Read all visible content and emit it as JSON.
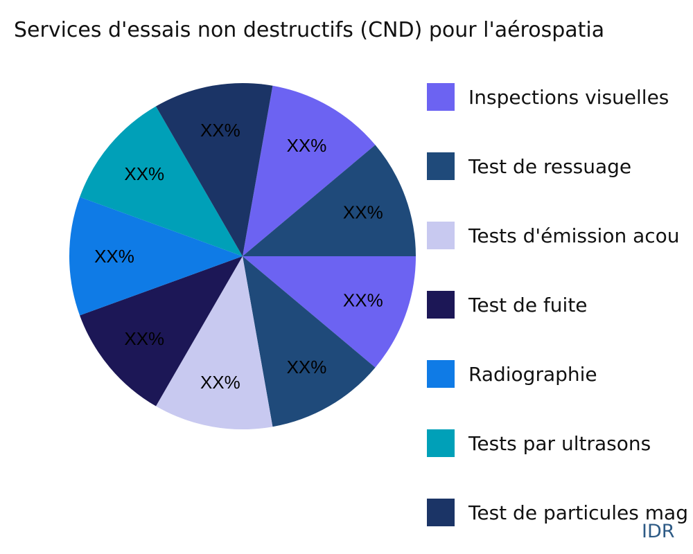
{
  "chart_data": {
    "type": "pie",
    "title": "Services d'essais non destructifs (CND) pour l'aérospatia",
    "slices": [
      {
        "value": 1,
        "label": "XX%",
        "color": "#6c63f2"
      },
      {
        "value": 1,
        "label": "XX%",
        "color": "#1f4a7a"
      },
      {
        "value": 1,
        "label": "XX%",
        "color": "#6c63f2"
      },
      {
        "value": 1,
        "label": "XX%",
        "color": "#1f4a7a"
      },
      {
        "value": 1,
        "label": "XX%",
        "color": "#c8c9f0"
      },
      {
        "value": 1,
        "label": "XX%",
        "color": "#1c1756"
      },
      {
        "value": 1,
        "label": "XX%",
        "color": "#0f7be6"
      },
      {
        "value": 1,
        "label": "XX%",
        "color": "#00a0b8"
      },
      {
        "value": 1,
        "label": "XX%",
        "color": "#1b3466"
      }
    ],
    "direction": "clockwise",
    "legend_position": "right",
    "legend": [
      {
        "name": "Inspections visuelles",
        "color": "#6c63f2"
      },
      {
        "name": "Test de ressuage",
        "color": "#1f4a7a"
      },
      {
        "name": "Tests d'émission acou",
        "color": "#c8c9f0"
      },
      {
        "name": "Test de fuite",
        "color": "#1c1756"
      },
      {
        "name": "Radiographie",
        "color": "#0f7be6"
      },
      {
        "name": "Tests par ultrasons",
        "color": "#00a0b8"
      },
      {
        "name": "Test de particules mag",
        "color": "#1b3466"
      }
    ]
  },
  "brand": "IDR"
}
